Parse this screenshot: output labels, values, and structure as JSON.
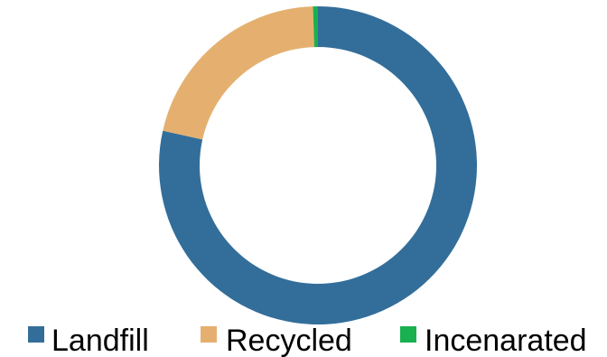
{
  "chart_data": {
    "type": "pie",
    "style": "donut",
    "title": "",
    "legend_position": "bottom",
    "slices": [
      {
        "label": "Landfill",
        "value": 78.5,
        "color": "#336e9a"
      },
      {
        "label": "Recycled",
        "value": 21.0,
        "color": "#e5b06f"
      },
      {
        "label": "Incenarated",
        "value": 0.5,
        "color": "#19b050"
      }
    ]
  }
}
